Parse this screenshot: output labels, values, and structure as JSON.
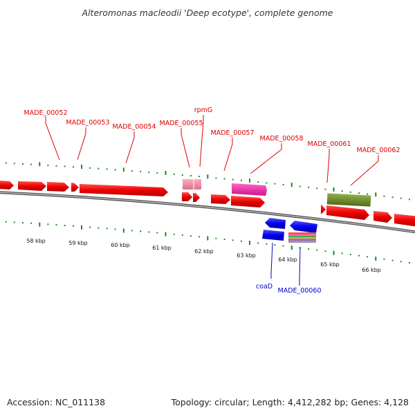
{
  "header": {
    "title": "Alteromonas macleodii 'Deep ecotype', complete genome"
  },
  "footer": {
    "accession": "Accession: NC_011138",
    "topology": "Topology: circular; Length: 4,412,282 bp; Genes: 4,128"
  },
  "colors": {
    "forward_cds": "#ee0000",
    "reverse_cds": "#0000ee",
    "forward_label": "#dd0000",
    "reverse_label": "#0000cc",
    "tick": "#1a8a1a",
    "backbone": "#777777",
    "trna_pink": "#ee88aa",
    "feature_magenta": "#ee33aa",
    "feature_olive": "#6b8e23"
  },
  "scale": {
    "tick_labels": [
      "58 kbp",
      "59 kbp",
      "60 kbp",
      "61 kbp",
      "62 kbp",
      "63 kbp",
      "64 kbp",
      "65 kbp",
      "66 kbp"
    ]
  },
  "forward_labels": [
    "MADE_00052",
    "MADE_00053",
    "MADE_00054",
    "MADE_00055",
    "rpmG",
    "MADE_00057",
    "MADE_00058",
    "MADE_00061",
    "MADE_00062"
  ],
  "reverse_labels": [
    "coaD",
    "MADE_00060"
  ]
}
